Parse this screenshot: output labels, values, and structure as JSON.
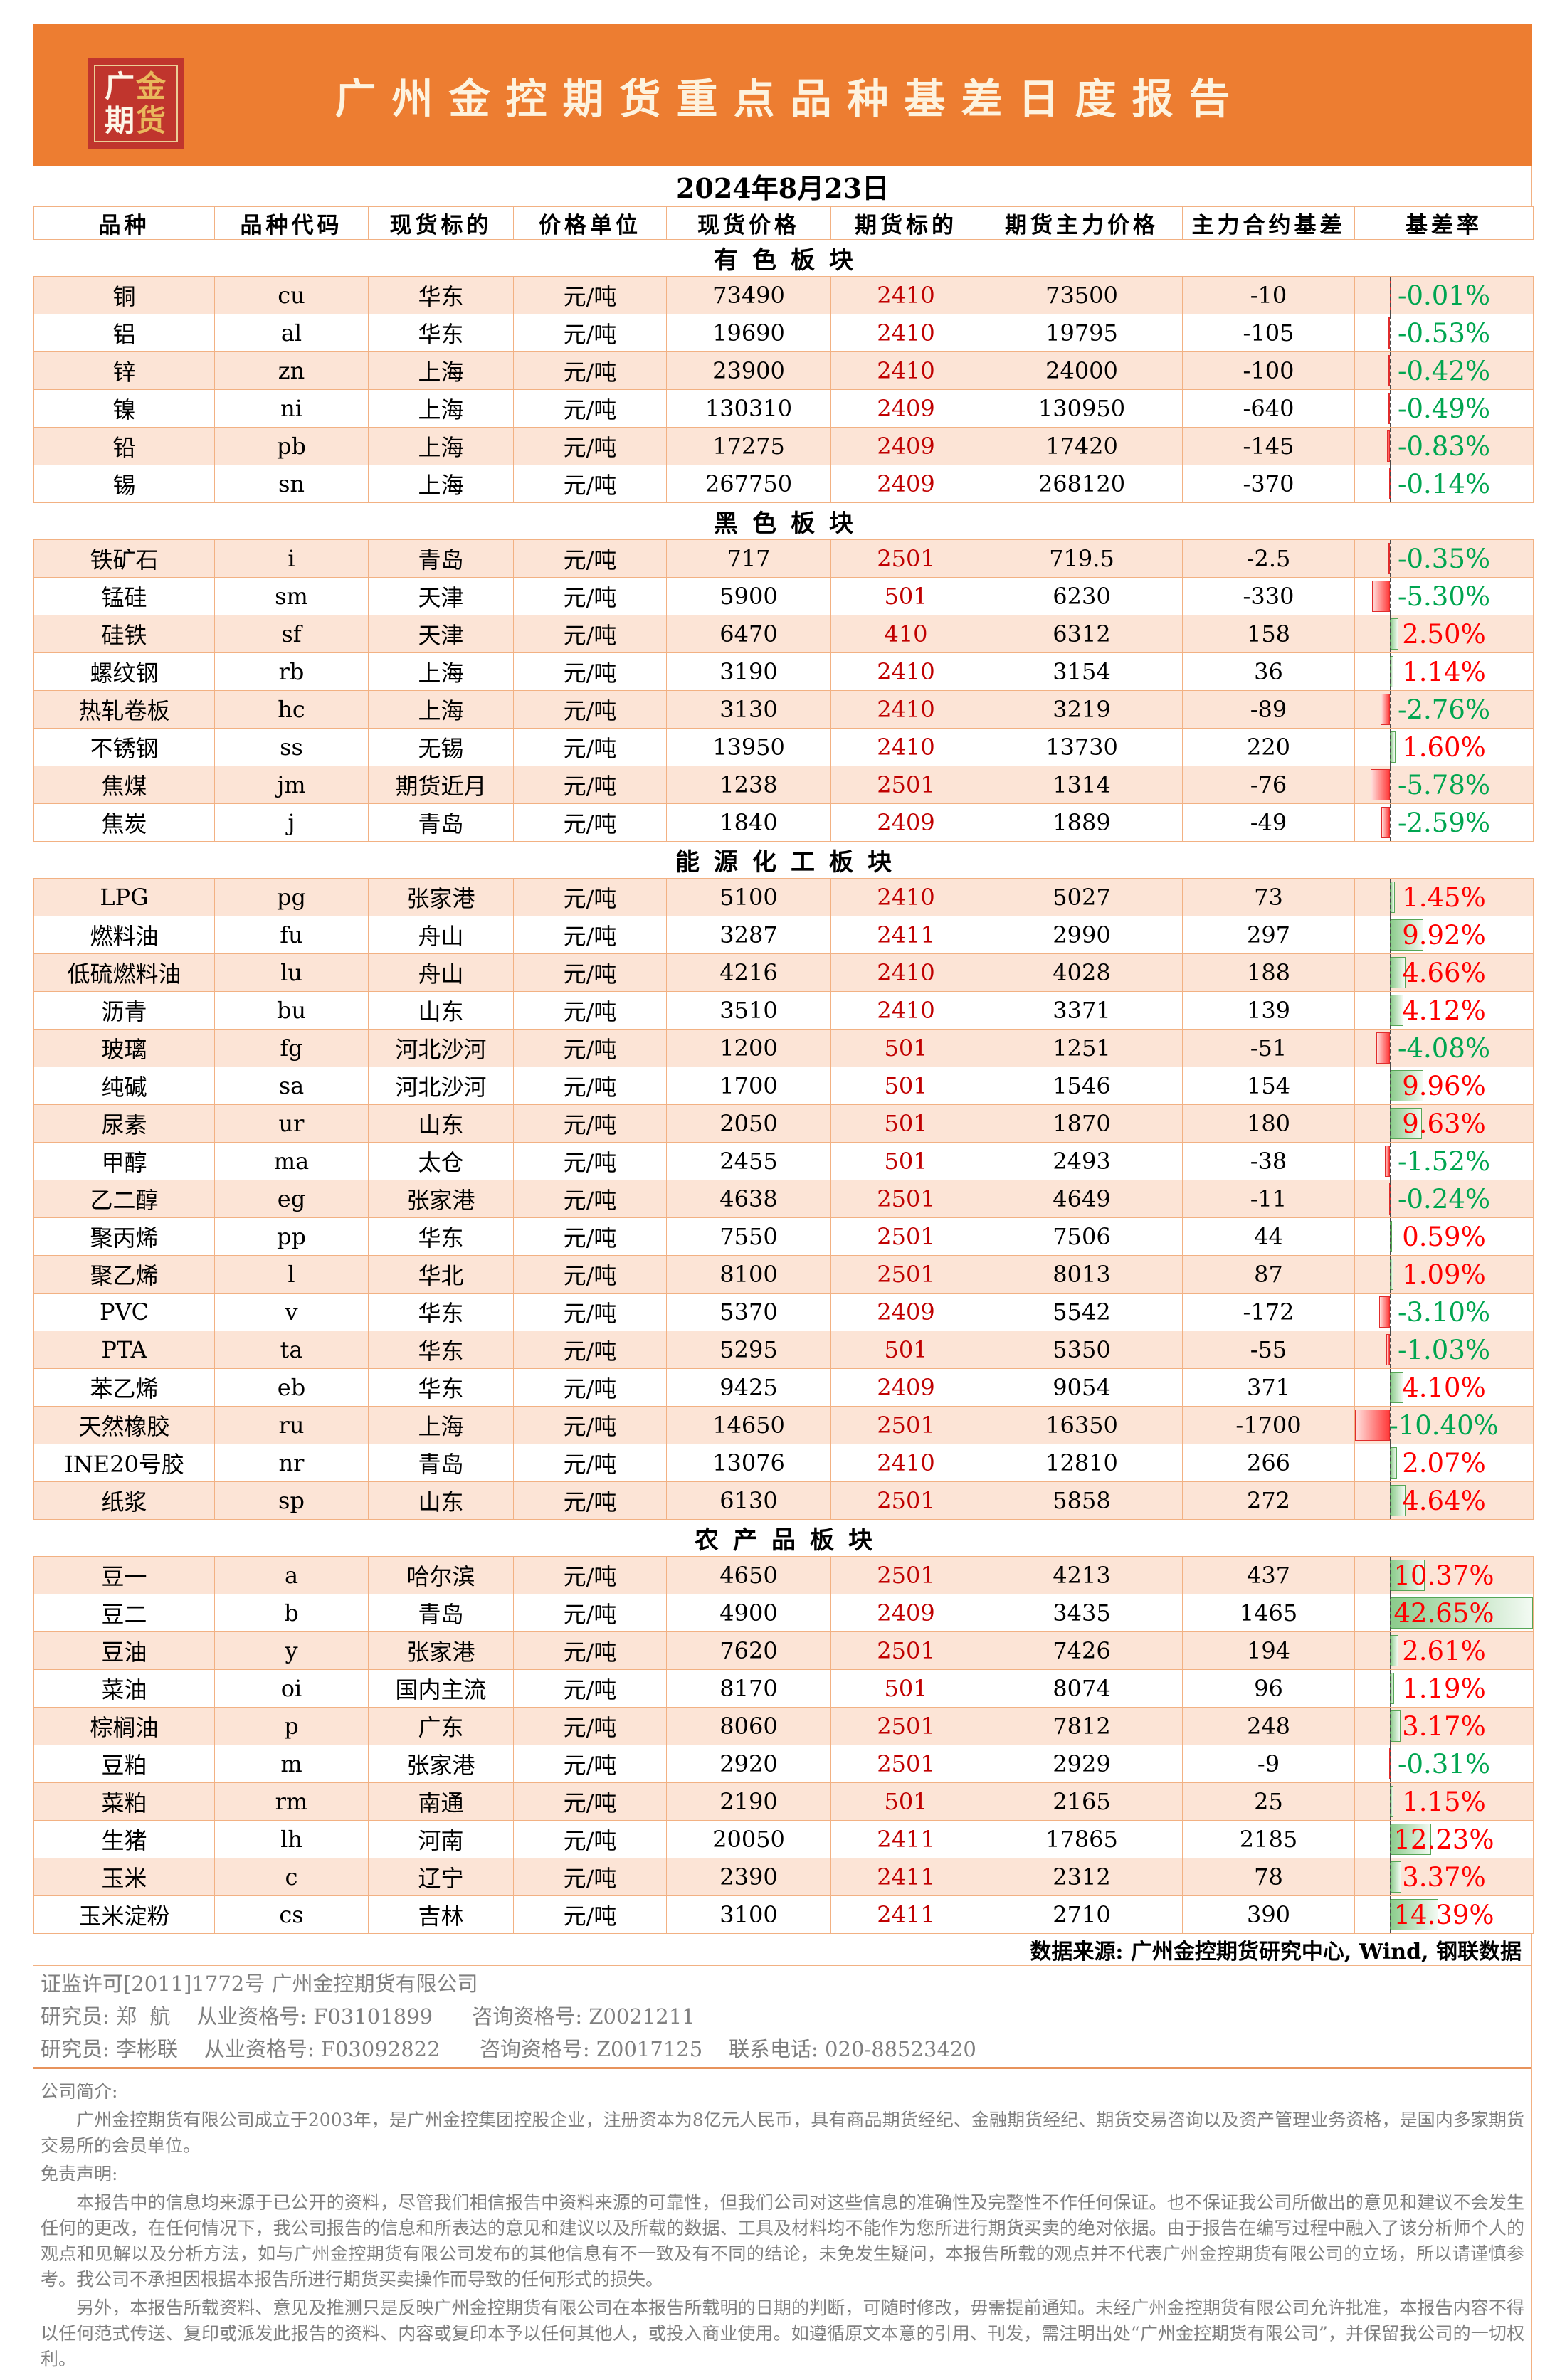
{
  "header": {
    "logo": {
      "row1_left": "广",
      "row1_right": "金",
      "row2_left": "期",
      "row2_right": "货"
    },
    "title": "广州金控期货重点品种基差日度报告"
  },
  "date_label": "2024年8月23日",
  "table": {
    "columns": [
      "品种",
      "品种代码",
      "现货标的",
      "价格单位",
      "现货价格",
      "期货标的",
      "期货主力价格",
      "主力合约基差",
      "基差率"
    ],
    "bar": {
      "axis_min": -10.4,
      "axis_max": 42.65
    },
    "sections": [
      {
        "id": "nonferrous",
        "label": "有色板块",
        "rows": [
          {
            "name": "铜",
            "code": "cu",
            "spot": "华东",
            "unit": "元/吨",
            "spot_price": "73490",
            "contract": "2410",
            "futures_price": "73500",
            "basis": "-10",
            "rate": -0.01,
            "rate_label": "-0.01%"
          },
          {
            "name": "铝",
            "code": "al",
            "spot": "华东",
            "unit": "元/吨",
            "spot_price": "19690",
            "contract": "2410",
            "futures_price": "19795",
            "basis": "-105",
            "rate": -0.53,
            "rate_label": "-0.53%"
          },
          {
            "name": "锌",
            "code": "zn",
            "spot": "上海",
            "unit": "元/吨",
            "spot_price": "23900",
            "contract": "2410",
            "futures_price": "24000",
            "basis": "-100",
            "rate": -0.42,
            "rate_label": "-0.42%"
          },
          {
            "name": "镍",
            "code": "ni",
            "spot": "上海",
            "unit": "元/吨",
            "spot_price": "130310",
            "contract": "2409",
            "futures_price": "130950",
            "basis": "-640",
            "rate": -0.49,
            "rate_label": "-0.49%"
          },
          {
            "name": "铅",
            "code": "pb",
            "spot": "上海",
            "unit": "元/吨",
            "spot_price": "17275",
            "contract": "2409",
            "futures_price": "17420",
            "basis": "-145",
            "rate": -0.83,
            "rate_label": "-0.83%"
          },
          {
            "name": "锡",
            "code": "sn",
            "spot": "上海",
            "unit": "元/吨",
            "spot_price": "267750",
            "contract": "2409",
            "futures_price": "268120",
            "basis": "-370",
            "rate": -0.14,
            "rate_label": "-0.14%"
          }
        ]
      },
      {
        "id": "ferrous",
        "label": "黑色板块",
        "rows": [
          {
            "name": "铁矿石",
            "code": "i",
            "spot": "青岛",
            "unit": "元/吨",
            "spot_price": "717",
            "contract": "2501",
            "futures_price": "719.5",
            "basis": "-2.5",
            "rate": -0.35,
            "rate_label": "-0.35%"
          },
          {
            "name": "锰硅",
            "code": "sm",
            "spot": "天津",
            "unit": "元/吨",
            "spot_price": "5900",
            "contract": "501",
            "futures_price": "6230",
            "basis": "-330",
            "rate": -5.3,
            "rate_label": "-5.30%"
          },
          {
            "name": "硅铁",
            "code": "sf",
            "spot": "天津",
            "unit": "元/吨",
            "spot_price": "6470",
            "contract": "410",
            "futures_price": "6312",
            "basis": "158",
            "rate": 2.5,
            "rate_label": "2.50%"
          },
          {
            "name": "螺纹钢",
            "code": "rb",
            "spot": "上海",
            "unit": "元/吨",
            "spot_price": "3190",
            "contract": "2410",
            "futures_price": "3154",
            "basis": "36",
            "rate": 1.14,
            "rate_label": "1.14%"
          },
          {
            "name": "热轧卷板",
            "code": "hc",
            "spot": "上海",
            "unit": "元/吨",
            "spot_price": "3130",
            "contract": "2410",
            "futures_price": "3219",
            "basis": "-89",
            "rate": -2.76,
            "rate_label": "-2.76%"
          },
          {
            "name": "不锈钢",
            "code": "ss",
            "spot": "无锡",
            "unit": "元/吨",
            "spot_price": "13950",
            "contract": "2410",
            "futures_price": "13730",
            "basis": "220",
            "rate": 1.6,
            "rate_label": "1.60%"
          },
          {
            "name": "焦煤",
            "code": "jm",
            "spot": "期货近月",
            "unit": "元/吨",
            "spot_price": "1238",
            "contract": "2501",
            "futures_price": "1314",
            "basis": "-76",
            "rate": -5.78,
            "rate_label": "-5.78%"
          },
          {
            "name": "焦炭",
            "code": "j",
            "spot": "青岛",
            "unit": "元/吨",
            "spot_price": "1840",
            "contract": "2409",
            "futures_price": "1889",
            "basis": "-49",
            "rate": -2.59,
            "rate_label": "-2.59%"
          }
        ]
      },
      {
        "id": "energy-chemical",
        "label": "能源化工板块",
        "rows": [
          {
            "name": "LPG",
            "code": "pg",
            "spot": "张家港",
            "unit": "元/吨",
            "spot_price": "5100",
            "contract": "2410",
            "futures_price": "5027",
            "basis": "73",
            "rate": 1.45,
            "rate_label": "1.45%"
          },
          {
            "name": "燃料油",
            "code": "fu",
            "spot": "舟山",
            "unit": "元/吨",
            "spot_price": "3287",
            "contract": "2411",
            "futures_price": "2990",
            "basis": "297",
            "rate": 9.92,
            "rate_label": "9.92%"
          },
          {
            "name": "低硫燃料油",
            "code": "lu",
            "spot": "舟山",
            "unit": "元/吨",
            "spot_price": "4216",
            "contract": "2410",
            "futures_price": "4028",
            "basis": "188",
            "rate": 4.66,
            "rate_label": "4.66%"
          },
          {
            "name": "沥青",
            "code": "bu",
            "spot": "山东",
            "unit": "元/吨",
            "spot_price": "3510",
            "contract": "2410",
            "futures_price": "3371",
            "basis": "139",
            "rate": 4.12,
            "rate_label": "4.12%"
          },
          {
            "name": "玻璃",
            "code": "fg",
            "spot": "河北沙河",
            "unit": "元/吨",
            "spot_price": "1200",
            "contract": "501",
            "futures_price": "1251",
            "basis": "-51",
            "rate": -4.08,
            "rate_label": "-4.08%"
          },
          {
            "name": "纯碱",
            "code": "sa",
            "spot": "河北沙河",
            "unit": "元/吨",
            "spot_price": "1700",
            "contract": "501",
            "futures_price": "1546",
            "basis": "154",
            "rate": 9.96,
            "rate_label": "9.96%"
          },
          {
            "name": "尿素",
            "code": "ur",
            "spot": "山东",
            "unit": "元/吨",
            "spot_price": "2050",
            "contract": "501",
            "futures_price": "1870",
            "basis": "180",
            "rate": 9.63,
            "rate_label": "9.63%"
          },
          {
            "name": "甲醇",
            "code": "ma",
            "spot": "太仓",
            "unit": "元/吨",
            "spot_price": "2455",
            "contract": "501",
            "futures_price": "2493",
            "basis": "-38",
            "rate": -1.52,
            "rate_label": "-1.52%"
          },
          {
            "name": "乙二醇",
            "code": "eg",
            "spot": "张家港",
            "unit": "元/吨",
            "spot_price": "4638",
            "contract": "2501",
            "futures_price": "4649",
            "basis": "-11",
            "rate": -0.24,
            "rate_label": "-0.24%"
          },
          {
            "name": "聚丙烯",
            "code": "pp",
            "spot": "华东",
            "unit": "元/吨",
            "spot_price": "7550",
            "contract": "2501",
            "futures_price": "7506",
            "basis": "44",
            "rate": 0.59,
            "rate_label": "0.59%"
          },
          {
            "name": "聚乙烯",
            "code": "l",
            "spot": "华北",
            "unit": "元/吨",
            "spot_price": "8100",
            "contract": "2501",
            "futures_price": "8013",
            "basis": "87",
            "rate": 1.09,
            "rate_label": "1.09%"
          },
          {
            "name": "PVC",
            "code": "v",
            "spot": "华东",
            "unit": "元/吨",
            "spot_price": "5370",
            "contract": "2409",
            "futures_price": "5542",
            "basis": "-172",
            "rate": -3.1,
            "rate_label": "-3.10%"
          },
          {
            "name": "PTA",
            "code": "ta",
            "spot": "华东",
            "unit": "元/吨",
            "spot_price": "5295",
            "contract": "501",
            "futures_price": "5350",
            "basis": "-55",
            "rate": -1.03,
            "rate_label": "-1.03%"
          },
          {
            "name": "苯乙烯",
            "code": "eb",
            "spot": "华东",
            "unit": "元/吨",
            "spot_price": "9425",
            "contract": "2409",
            "futures_price": "9054",
            "basis": "371",
            "rate": 4.1,
            "rate_label": "4.10%"
          },
          {
            "name": "天然橡胶",
            "code": "ru",
            "spot": "上海",
            "unit": "元/吨",
            "spot_price": "14650",
            "contract": "2501",
            "futures_price": "16350",
            "basis": "-1700",
            "rate": -10.4,
            "rate_label": "-10.40%"
          },
          {
            "name": "INE20号胶",
            "code": "nr",
            "spot": "青岛",
            "unit": "元/吨",
            "spot_price": "13076",
            "contract": "2410",
            "futures_price": "12810",
            "basis": "266",
            "rate": 2.07,
            "rate_label": "2.07%"
          },
          {
            "name": "纸浆",
            "code": "sp",
            "spot": "山东",
            "unit": "元/吨",
            "spot_price": "6130",
            "contract": "2501",
            "futures_price": "5858",
            "basis": "272",
            "rate": 4.64,
            "rate_label": "4.64%"
          }
        ]
      },
      {
        "id": "agricultural",
        "label": "农产品板块",
        "rows": [
          {
            "name": "豆一",
            "code": "a",
            "spot": "哈尔滨",
            "unit": "元/吨",
            "spot_price": "4650",
            "contract": "2501",
            "futures_price": "4213",
            "basis": "437",
            "rate": 10.37,
            "rate_label": "10.37%"
          },
          {
            "name": "豆二",
            "code": "b",
            "spot": "青岛",
            "unit": "元/吨",
            "spot_price": "4900",
            "contract": "2409",
            "futures_price": "3435",
            "basis": "1465",
            "rate": 42.65,
            "rate_label": "42.65%"
          },
          {
            "name": "豆油",
            "code": "y",
            "spot": "张家港",
            "unit": "元/吨",
            "spot_price": "7620",
            "contract": "2501",
            "futures_price": "7426",
            "basis": "194",
            "rate": 2.61,
            "rate_label": "2.61%"
          },
          {
            "name": "菜油",
            "code": "oi",
            "spot": "国内主流",
            "unit": "元/吨",
            "spot_price": "8170",
            "contract": "501",
            "futures_price": "8074",
            "basis": "96",
            "rate": 1.19,
            "rate_label": "1.19%"
          },
          {
            "name": "棕榈油",
            "code": "p",
            "spot": "广东",
            "unit": "元/吨",
            "spot_price": "8060",
            "contract": "2501",
            "futures_price": "7812",
            "basis": "248",
            "rate": 3.17,
            "rate_label": "3.17%"
          },
          {
            "name": "豆粕",
            "code": "m",
            "spot": "张家港",
            "unit": "元/吨",
            "spot_price": "2920",
            "contract": "2501",
            "futures_price": "2929",
            "basis": "-9",
            "rate": -0.31,
            "rate_label": "-0.31%"
          },
          {
            "name": "菜粕",
            "code": "rm",
            "spot": "南通",
            "unit": "元/吨",
            "spot_price": "2190",
            "contract": "501",
            "futures_price": "2165",
            "basis": "25",
            "rate": 1.15,
            "rate_label": "1.15%"
          },
          {
            "name": "生猪",
            "code": "lh",
            "spot": "河南",
            "unit": "元/吨",
            "spot_price": "20050",
            "contract": "2411",
            "futures_price": "17865",
            "basis": "2185",
            "rate": 12.23,
            "rate_label": "12.23%"
          },
          {
            "name": "玉米",
            "code": "c",
            "spot": "辽宁",
            "unit": "元/吨",
            "spot_price": "2390",
            "contract": "2411",
            "futures_price": "2312",
            "basis": "78",
            "rate": 3.37,
            "rate_label": "3.37%"
          },
          {
            "name": "玉米淀粉",
            "code": "cs",
            "spot": "吉林",
            "unit": "元/吨",
            "spot_price": "3100",
            "contract": "2411",
            "futures_price": "2710",
            "basis": "390",
            "rate": 14.39,
            "rate_label": "14.39%"
          }
        ]
      }
    ]
  },
  "source_note": "数据来源: 广州金控期货研究中心, Wind, 钢联数据",
  "footer": {
    "license_line": "证监许可[2011]1772号 广州金控期货有限公司",
    "researcher_line1": "研究员: 郑  航    从业资格号: F03101899      咨询资格号: Z0021211",
    "researcher_line2": "研究员: 李彬联    从业资格号: F03092822      咨询资格号: Z0017125    联系电话: 020-88523420",
    "profile_heading": "公司简介:",
    "profile_text": "广州金控期货有限公司成立于2003年，是广州金控集团控股企业，注册资本为8亿元人民币，具有商品期货经纪、金融期货经纪、期货交易咨询以及资产管理业务资格，是国内多家期货交易所的会员单位。",
    "disclaimer_heading": "免责声明:",
    "disclaimer_p1": "本报告中的信息均来源于已公开的资料，尽管我们相信报告中资料来源的可靠性，但我们公司对这些信息的准确性及完整性不作任何保证。也不保证我公司所做出的意见和建议不会发生任何的更改，在任何情况下，我公司报告的信息和所表达的意见和建议以及所载的数据、工具及材料均不能作为您所进行期货买卖的绝对依据。由于报告在编写过程中融入了该分析师个人的观点和见解以及分析方法，如与广州金控期货有限公司发布的其他信息有不一致及有不同的结论，未免发生疑问，本报告所载的观点并不代表广州金控期货有限公司的立场，所以请谨慎参考。我公司不承担因根据本报告所进行期货买卖操作而导致的任何形式的损失。",
    "disclaimer_p2": "另外，本报告所载资料、意见及推测只是反映广州金控期货有限公司在本报告所载明的日期的判断，可随时修改，毋需提前通知。未经广州金控期货有限公司允许批准，本报告内容不得以任何范式传送、复印或派发此报告的资料、内容或复印本予以任何其他人，或投入商业使用。如遵循原文本意的引用、刊发，需注明出处“广州金控期货有限公司”，并保留我公司的一切权利。"
  },
  "colors": {
    "band_orange": "#ED7D31",
    "logo_red": "#C0352D",
    "logo_gold": "#E9B85C",
    "title_cream": "#FDF3DF",
    "row_peach": "#FCE4D6",
    "grid_border": "#F2B183",
    "contract_dark_red": "#C00000",
    "positive_red": "#FE0000",
    "negative_green": "#00A550",
    "bar_red": "#FF3B3B",
    "bar_green": "#8BCB8B",
    "footer_gray": "#7F7F7F",
    "divider_orange": "#E8935C"
  }
}
